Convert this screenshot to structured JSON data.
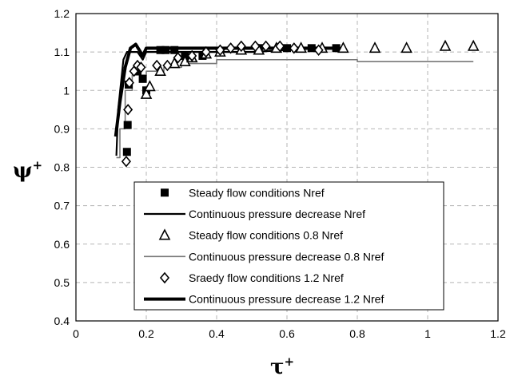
{
  "chart_data": {
    "type": "scatter",
    "xlabel": "τ",
    "xlabel_sup": "+",
    "ylabel": "ψ",
    "ylabel_sup": "+",
    "xlim": [
      0,
      1.2
    ],
    "ylim": [
      0.4,
      1.2
    ],
    "xticks": [
      0,
      0.2,
      0.4,
      0.6,
      0.8,
      1,
      1.2
    ],
    "xtick_labels": [
      "0",
      "0.2",
      "0.4",
      "0.6",
      "0.8",
      "1",
      "1.2"
    ],
    "yticks": [
      0.4,
      0.5,
      0.6,
      0.7,
      0.8,
      0.9,
      1,
      1.1,
      1.2
    ],
    "ytick_labels": [
      "0.4",
      "0.5",
      "0.6",
      "0.7",
      "0.8",
      "0.9",
      "1",
      "1.1",
      "1.2"
    ],
    "grid": "dashed",
    "legend_position": "bottom-center",
    "series": [
      {
        "name": "Steady flow conditions Nref",
        "kind": "marker",
        "marker": "square",
        "color": "#000000",
        "points": [
          [
            0.145,
            0.84
          ],
          [
            0.147,
            0.91
          ],
          [
            0.15,
            1.015
          ],
          [
            0.175,
            1.05
          ],
          [
            0.19,
            1.03
          ],
          [
            0.2,
            1.0
          ],
          [
            0.24,
            1.105
          ],
          [
            0.255,
            1.105
          ],
          [
            0.28,
            1.105
          ],
          [
            0.31,
            1.09
          ],
          [
            0.36,
            1.09
          ],
          [
            0.52,
            1.11
          ],
          [
            0.6,
            1.11
          ],
          [
            0.67,
            1.11
          ],
          [
            0.74,
            1.11
          ]
        ]
      },
      {
        "name": "Continuous pressure decrease Nref",
        "kind": "line",
        "color": "#000000",
        "width": 2.2,
        "points": [
          [
            0.115,
            0.83
          ],
          [
            0.12,
            0.95
          ],
          [
            0.135,
            1.08
          ],
          [
            0.145,
            1.1
          ],
          [
            0.16,
            1.1
          ],
          [
            0.175,
            1.1
          ],
          [
            0.19,
            1.08
          ],
          [
            0.2,
            1.1
          ],
          [
            0.25,
            1.1
          ],
          [
            0.3,
            1.1
          ],
          [
            0.4,
            1.1
          ],
          [
            0.5,
            1.1
          ],
          [
            0.6,
            1.105
          ],
          [
            0.7,
            1.11
          ],
          [
            0.76,
            1.11
          ]
        ]
      },
      {
        "name": "Steady flow conditions 0.8 Nref",
        "kind": "marker",
        "marker": "triangle",
        "color": "#000000",
        "points": [
          [
            0.2,
            0.99
          ],
          [
            0.21,
            1.01
          ],
          [
            0.24,
            1.05
          ],
          [
            0.28,
            1.07
          ],
          [
            0.31,
            1.075
          ],
          [
            0.33,
            1.085
          ],
          [
            0.37,
            1.095
          ],
          [
            0.41,
            1.1
          ],
          [
            0.47,
            1.105
          ],
          [
            0.52,
            1.105
          ],
          [
            0.57,
            1.11
          ],
          [
            0.64,
            1.11
          ],
          [
            0.7,
            1.11
          ],
          [
            0.76,
            1.11
          ],
          [
            0.85,
            1.11
          ],
          [
            0.94,
            1.11
          ],
          [
            1.05,
            1.115
          ],
          [
            1.13,
            1.115
          ]
        ]
      },
      {
        "name": "Continuous pressure decrease 0.8 Nref",
        "kind": "line",
        "color": "#777777",
        "width": 1.6,
        "step": true,
        "points": [
          [
            0.115,
            0.825
          ],
          [
            0.125,
            0.9
          ],
          [
            0.14,
            1.0
          ],
          [
            0.16,
            1.04
          ],
          [
            0.2,
            1.05
          ],
          [
            0.25,
            1.06
          ],
          [
            0.3,
            1.07
          ],
          [
            0.4,
            1.08
          ],
          [
            0.5,
            1.08
          ],
          [
            0.6,
            1.08
          ],
          [
            0.7,
            1.08
          ],
          [
            0.8,
            1.075
          ],
          [
            0.9,
            1.075
          ],
          [
            1.0,
            1.075
          ],
          [
            1.13,
            1.075
          ]
        ]
      },
      {
        "name": "Sraedy flow conditions 1.2 Nref",
        "kind": "marker",
        "marker": "diamond",
        "color": "#000000",
        "points": [
          [
            0.143,
            0.815
          ],
          [
            0.148,
            0.95
          ],
          [
            0.152,
            1.02
          ],
          [
            0.165,
            1.05
          ],
          [
            0.175,
            1.065
          ],
          [
            0.185,
            1.06
          ],
          [
            0.23,
            1.065
          ],
          [
            0.26,
            1.065
          ],
          [
            0.29,
            1.085
          ],
          [
            0.33,
            1.09
          ],
          [
            0.37,
            1.1
          ],
          [
            0.41,
            1.105
          ],
          [
            0.44,
            1.11
          ],
          [
            0.47,
            1.115
          ],
          [
            0.51,
            1.115
          ],
          [
            0.54,
            1.115
          ],
          [
            0.58,
            1.115
          ],
          [
            0.62,
            1.11
          ],
          [
            0.69,
            1.105
          ]
        ]
      },
      {
        "name": "Continuous pressure decrease 1.2 Nref",
        "kind": "line",
        "color": "#000000",
        "width": 4,
        "points": [
          [
            0.113,
            0.88
          ],
          [
            0.125,
            0.97
          ],
          [
            0.14,
            1.06
          ],
          [
            0.155,
            1.11
          ],
          [
            0.17,
            1.12
          ],
          [
            0.18,
            1.105
          ],
          [
            0.19,
            1.09
          ],
          [
            0.2,
            1.11
          ],
          [
            0.25,
            1.11
          ],
          [
            0.3,
            1.11
          ],
          [
            0.4,
            1.11
          ],
          [
            0.5,
            1.11
          ],
          [
            0.6,
            1.11
          ],
          [
            0.7,
            1.11
          ],
          [
            0.745,
            1.11
          ]
        ]
      }
    ]
  }
}
